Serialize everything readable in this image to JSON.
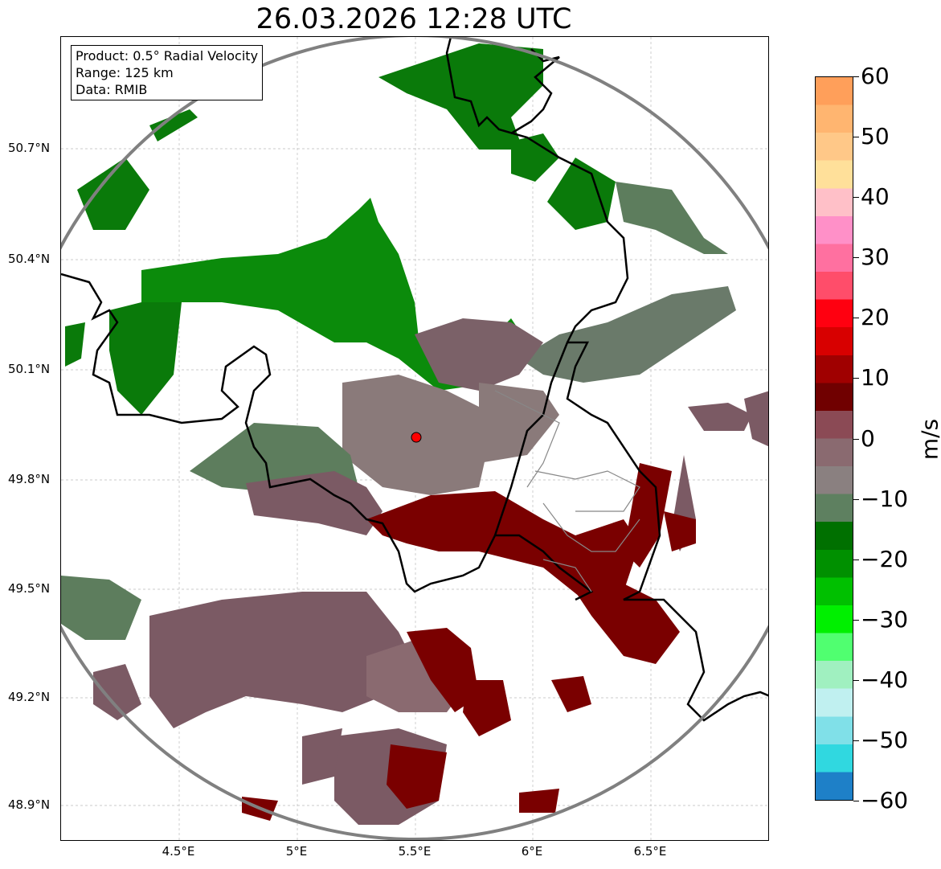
{
  "title": "26.03.2026 12:28 UTC",
  "info_box": {
    "product": "Product: 0.5° Radial Velocity",
    "range": "Range: 125 km",
    "data": "Data: RMIB"
  },
  "axes": {
    "lat_labels": [
      "50.7°N",
      "50.4°N",
      "50.1°N",
      "49.8°N",
      "49.5°N",
      "49.2°N",
      "48.9°N"
    ],
    "lon_labels": [
      "4.5°E",
      "5°E",
      "5.5°E",
      "6°E",
      "6.5°E"
    ],
    "lat_values": [
      50.7,
      50.4,
      50.1,
      49.8,
      49.5,
      49.2,
      48.9
    ],
    "lon_values": [
      4.5,
      5.0,
      5.5,
      6.0,
      6.5
    ],
    "lon_range": [
      4.0,
      7.0
    ],
    "lat_range": [
      48.8,
      51.0
    ]
  },
  "radar_site": {
    "lon": 5.505,
    "lat": 49.914
  },
  "colorbar": {
    "unit": "m/s",
    "min": -60,
    "max": 60,
    "tick_labels": [
      "60",
      "50",
      "40",
      "30",
      "20",
      "10",
      "0",
      "−10",
      "−20",
      "−30",
      "−40",
      "−50",
      "−60"
    ],
    "tick_values": [
      60,
      50,
      40,
      30,
      20,
      10,
      0,
      -10,
      -20,
      -30,
      -40,
      -50,
      -60
    ],
    "colors": [
      "#ff9f5a",
      "#ffb570",
      "#ffc888",
      "#ffe09a",
      "#ffc0c8",
      "#ff90c8",
      "#ff70a0",
      "#ff4d6a",
      "#ff0010",
      "#d80000",
      "#a00000",
      "#700000",
      "#8b4a55",
      "#8a6a70",
      "#8a8080",
      "#5e8060",
      "#007000",
      "#009000",
      "#00c000",
      "#00f000",
      "#50ff70",
      "#a0f0c0",
      "#c0f0f0",
      "#80e0e8",
      "#30d8e0",
      "#1e80c8"
    ]
  },
  "colors": {
    "green_dark": "#006400",
    "green_mid": "#008c00",
    "gray_green": "#5d7d5d",
    "mauve": "#7f5a64",
    "dark_red": "#7a0000",
    "range_ring": "#808080"
  }
}
